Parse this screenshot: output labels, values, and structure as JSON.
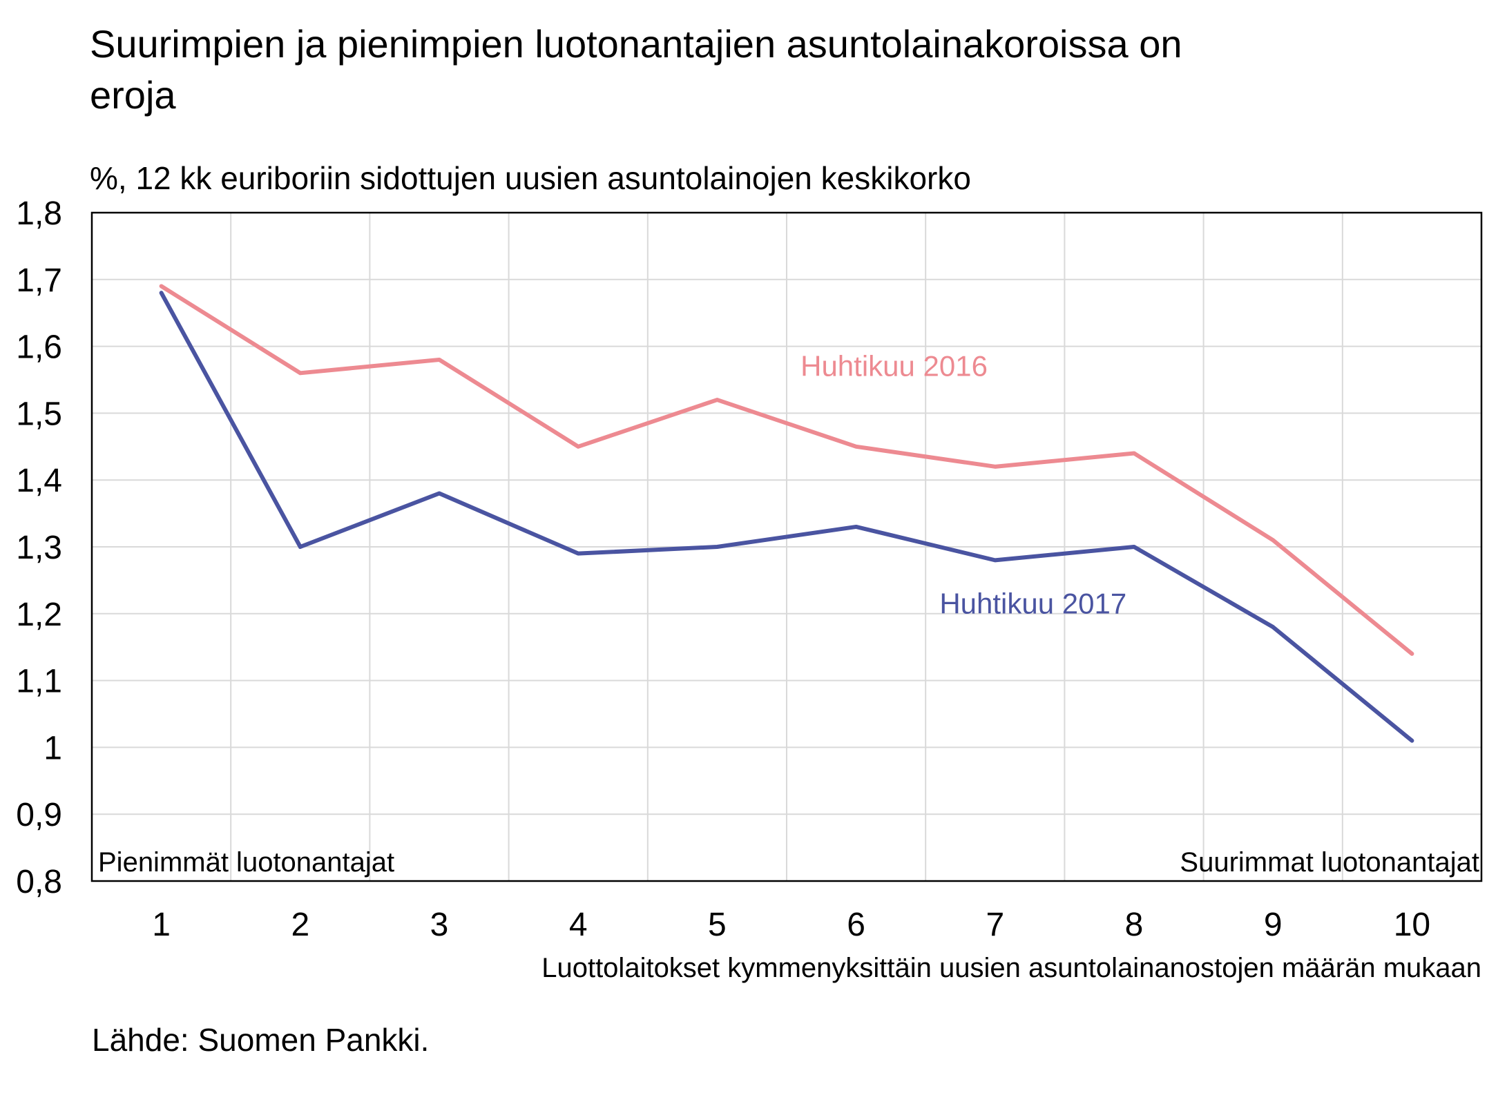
{
  "chart_data": {
    "type": "line",
    "title_lines": [
      "Suurimpien ja pienimpien luotonantajien asuntolainakoroissa on",
      "eroja"
    ],
    "subtitle": "%, 12 kk euriboriin sidottujen uusien asuntolainojen keskikorko",
    "xlabel": "Luottolaitokset kymmenyksittäin uusien asuntolainanostojen määrän mukaan",
    "ylabel": "",
    "x": [
      1,
      2,
      3,
      4,
      5,
      6,
      7,
      8,
      9,
      10
    ],
    "x_tick_labels": [
      "1",
      "2",
      "3",
      "4",
      "5",
      "6",
      "7",
      "8",
      "9",
      "10"
    ],
    "ylim": [
      0.8,
      1.8
    ],
    "y_ticks": [
      0.8,
      0.9,
      1.0,
      1.1,
      1.2,
      1.3,
      1.4,
      1.5,
      1.6,
      1.7,
      1.8
    ],
    "y_tick_labels": [
      "0,8",
      "0,9",
      "1",
      "1,1",
      "1,2",
      "1,3",
      "1,4",
      "1,5",
      "1,6",
      "1,7",
      "1,8"
    ],
    "grid": true,
    "legend": "inline labels",
    "corner_left_label": "Pienimmät luotonantajat",
    "corner_right_label": "Suurimmat luotonantajat",
    "series": [
      {
        "name": "Huhtikuu 2016",
        "color": "#ed8a91",
        "values": [
          1.69,
          1.56,
          1.58,
          1.45,
          1.52,
          1.45,
          1.42,
          1.44,
          1.31,
          1.14
        ],
        "label_anchor": {
          "x": 5.6,
          "y": 1.57
        }
      },
      {
        "name": "Huhtikuu 2017",
        "color": "#4a54a1",
        "values": [
          1.68,
          1.3,
          1.38,
          1.29,
          1.3,
          1.33,
          1.28,
          1.3,
          1.18,
          1.01
        ],
        "label_anchor": {
          "x": 6.6,
          "y": 1.215
        }
      }
    ],
    "source": "Lähde: Suomen Pankki."
  }
}
